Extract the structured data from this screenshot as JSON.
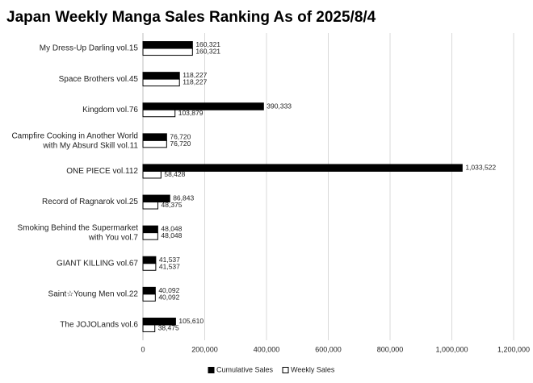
{
  "chart_data": {
    "type": "bar",
    "orientation": "horizontal",
    "title": "Japan Weekly Manga Sales Ranking As of 2025/8/4",
    "categories": [
      "My Dress-Up Darling vol.15",
      "Space Brothers vol.45",
      "Kingdom vol.76",
      "Campfire Cooking in Another World\nwith My Absurd Skill vol.11",
      "ONE PIECE vol.112",
      "Record of Ragnarok vol.25",
      "Smoking Behind the Supermarket\nwith You vol.7",
      "GIANT KILLING vol.67",
      "Saint☆Young Men vol.22",
      "The JOJOLands vol.6"
    ],
    "series": [
      {
        "name": "Cumulative Sales",
        "color": "#000000",
        "values": [
          160321,
          118227,
          390333,
          76720,
          1033522,
          86843,
          48048,
          41537,
          40092,
          105610
        ],
        "value_labels": [
          "160,321",
          "118,227",
          "390,333",
          "76,720",
          "1,033,522",
          "86,843",
          "48,048",
          "41,537",
          "40,092",
          "105,610"
        ]
      },
      {
        "name": "Weekly Sales",
        "color": "#ffffff",
        "values": [
          160321,
          118227,
          103879,
          76720,
          58428,
          48375,
          48048,
          41537,
          40092,
          38475
        ],
        "value_labels": [
          "160,321",
          "118,227",
          "103,879",
          "76,720",
          "58,428",
          "48,375",
          "48,048",
          "41,537",
          "40,092",
          "38,475"
        ]
      }
    ],
    "xlim": [
      0,
      1200000
    ],
    "xticks": [
      0,
      {
        "value": 200000,
        "label": "200,000"
      },
      {
        "value": 400000,
        "label": "400,000"
      },
      {
        "value": 600000,
        "label": "600,000"
      },
      {
        "value": 800000,
        "label": "800,000"
      },
      {
        "value": 1000000,
        "label": "1,000,000"
      },
      {
        "value": 1200000,
        "label": "1,200,000"
      }
    ],
    "grid": true,
    "legend": "bottom"
  }
}
